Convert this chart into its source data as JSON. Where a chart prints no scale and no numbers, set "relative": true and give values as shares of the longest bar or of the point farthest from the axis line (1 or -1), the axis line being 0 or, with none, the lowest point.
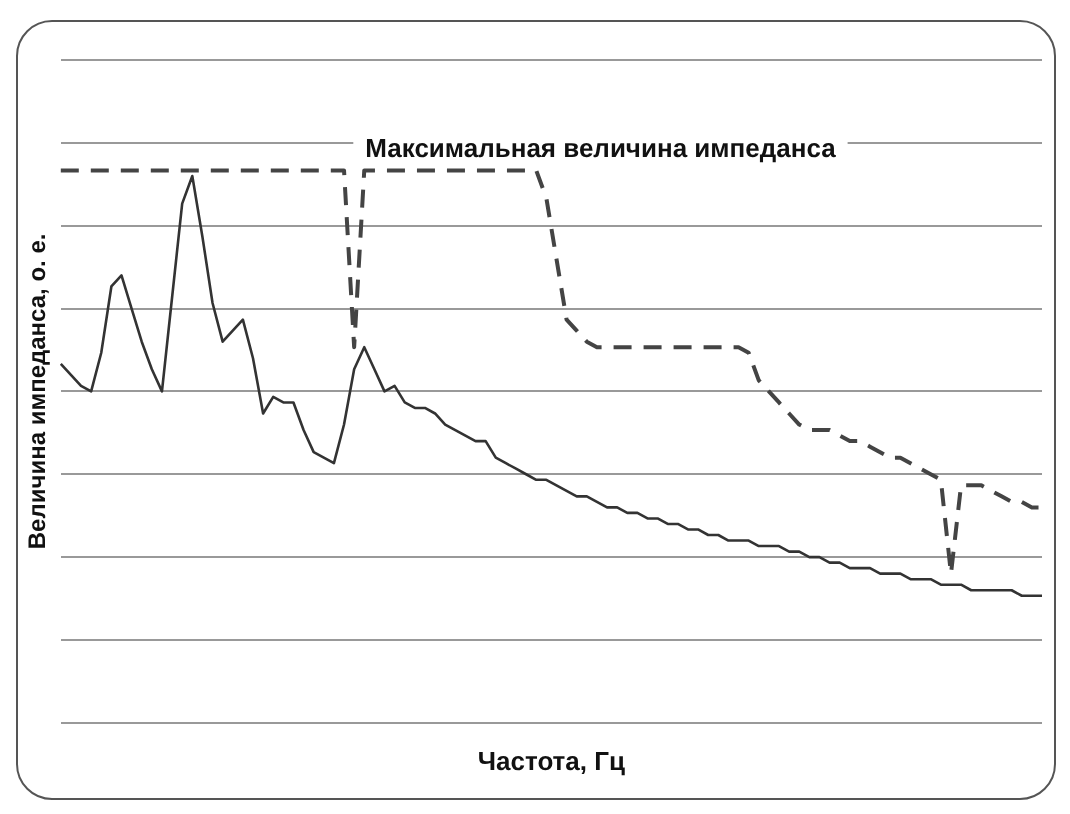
{
  "chart_data": {
    "type": "line",
    "relative": true,
    "xlabel": "Частота, Гц",
    "ylabel": "Величина импеданса, о. е.",
    "annotations": [
      "Максимальная величина импеданса"
    ],
    "categories": [
      null,
      null,
      null,
      null,
      null,
      null,
      null,
      null,
      null,
      null,
      null,
      null,
      null,
      null,
      null,
      null,
      null,
      null,
      null,
      null,
      null,
      null,
      null,
      null,
      null,
      null,
      null,
      null,
      null,
      null,
      null,
      null,
      null,
      null,
      null,
      null,
      null,
      null,
      null,
      null,
      null,
      null,
      null,
      null,
      null,
      null,
      null,
      null,
      null,
      null,
      null,
      null,
      null,
      null,
      null,
      null,
      null,
      null,
      null,
      null,
      null,
      null,
      null,
      null,
      null,
      null,
      null,
      null,
      null,
      null,
      null,
      null,
      null,
      null,
      null,
      null,
      null,
      null,
      null,
      null,
      null,
      null,
      null,
      null,
      null,
      null,
      null,
      null,
      null,
      null,
      null,
      null,
      null,
      null,
      null,
      null,
      null,
      null
    ],
    "series": [
      {
        "color": "#333333",
        "line_style": "solid",
        "values": [
          0.65,
          0.63,
          0.61,
          0.6,
          0.67,
          0.79,
          0.81,
          0.75,
          0.69,
          0.64,
          0.6,
          0.77,
          0.94,
          0.99,
          0.88,
          0.76,
          0.69,
          0.71,
          0.73,
          0.66,
          0.56,
          0.59,
          0.58,
          0.58,
          0.53,
          0.49,
          0.48,
          0.47,
          0.54,
          0.64,
          0.68,
          0.64,
          0.6,
          0.61,
          0.58,
          0.57,
          0.57,
          0.56,
          0.54,
          0.53,
          0.52,
          0.51,
          0.51,
          0.48,
          0.47,
          0.46,
          0.45,
          0.44,
          0.44,
          0.43,
          0.42,
          0.41,
          0.41,
          0.4,
          0.39,
          0.39,
          0.38,
          0.38,
          0.37,
          0.37,
          0.36,
          0.36,
          0.35,
          0.35,
          0.34,
          0.34,
          0.33,
          0.33,
          0.33,
          0.32,
          0.32,
          0.32,
          0.31,
          0.31,
          0.3,
          0.3,
          0.29,
          0.29,
          0.28,
          0.28,
          0.28,
          0.27,
          0.27,
          0.27,
          0.26,
          0.26,
          0.26,
          0.25,
          0.25,
          0.25,
          0.24,
          0.24,
          0.24,
          0.24,
          0.24,
          0.23,
          0.23,
          0.23
        ]
      },
      {
        "color": "#444444",
        "line_style": "dashed",
        "values": [
          1,
          1,
          1,
          1,
          1,
          1,
          1,
          1,
          1,
          1,
          1,
          1,
          1,
          1,
          1,
          1,
          1,
          1,
          1,
          1,
          1,
          1,
          1,
          1,
          1,
          1,
          1,
          1,
          1,
          0.68,
          1,
          1,
          1,
          1,
          1,
          1,
          1,
          1,
          1,
          1,
          1,
          1,
          1,
          1,
          1,
          1,
          1,
          1,
          0.95,
          0.84,
          0.73,
          0.71,
          0.69,
          0.68,
          0.68,
          0.68,
          0.68,
          0.68,
          0.68,
          0.68,
          0.68,
          0.68,
          0.68,
          0.68,
          0.68,
          0.68,
          0.68,
          0.68,
          0.67,
          0.62,
          0.6,
          0.58,
          0.56,
          0.54,
          0.53,
          0.53,
          0.53,
          0.52,
          0.51,
          0.51,
          0.5,
          0.49,
          0.48,
          0.48,
          0.47,
          0.46,
          0.45,
          0.44,
          0.27,
          0.43,
          0.43,
          0.43,
          0.42,
          0.41,
          0.4,
          0.4,
          0.39,
          0.39
        ]
      }
    ],
    "grid": "y",
    "legend": false,
    "marker": "none"
  }
}
